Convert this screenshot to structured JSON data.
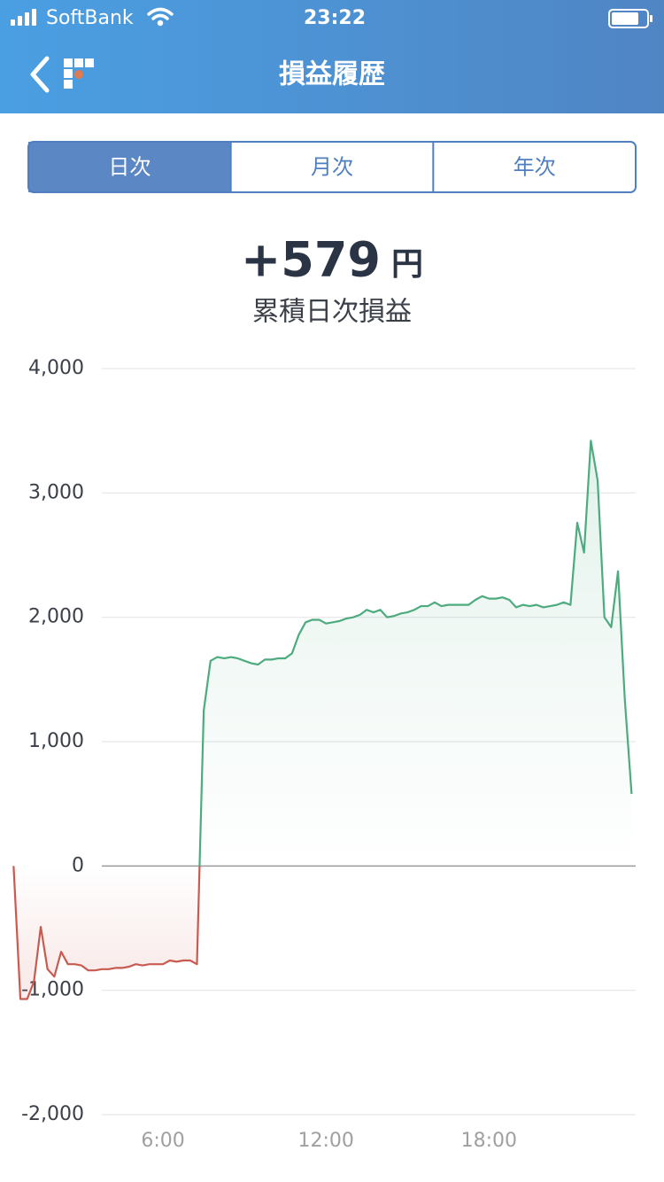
{
  "status_bar": {
    "carrier": "SoftBank",
    "time": "23:22"
  },
  "nav": {
    "title": "損益履歴"
  },
  "tabs": {
    "items": [
      "日次",
      "月次",
      "年次"
    ],
    "selected": 0
  },
  "summary": {
    "value": "+579",
    "unit": "円",
    "label": "累積日次損益"
  },
  "chart_data": {
    "type": "area-line",
    "x": [
      0.5,
      0.75,
      1,
      1.25,
      1.5,
      1.75,
      2,
      2.25,
      2.5,
      2.75,
      3,
      3.25,
      3.5,
      3.75,
      4,
      4.25,
      4.5,
      4.75,
      5,
      5.25,
      5.5,
      5.75,
      6,
      6.25,
      6.5,
      6.75,
      7,
      7.25,
      7.5,
      7.75,
      8,
      8.25,
      8.5,
      8.75,
      9,
      9.25,
      9.5,
      9.75,
      10,
      10.25,
      10.5,
      10.75,
      11,
      11.25,
      11.5,
      11.75,
      12,
      12.25,
      12.5,
      12.75,
      13,
      13.25,
      13.5,
      13.75,
      14,
      14.25,
      14.5,
      14.75,
      15,
      15.25,
      15.5,
      15.75,
      16,
      16.25,
      16.5,
      16.75,
      17,
      17.25,
      17.5,
      17.75,
      18,
      18.25,
      18.5,
      18.75,
      19,
      19.25,
      19.5,
      19.75,
      20,
      20.25,
      20.5,
      20.75,
      21,
      21.25,
      21.5,
      21.75,
      22,
      22.25,
      22.5,
      22.75,
      23,
      23.25
    ],
    "series": [
      {
        "color": "#4dab7f",
        "negative_color": "#c95a50",
        "values": [
          0,
          -1070,
          -1070,
          -930,
          -490,
          -830,
          -890,
          -690,
          -790,
          -790,
          -800,
          -840,
          -840,
          -830,
          -830,
          -820,
          -820,
          -810,
          -790,
          -800,
          -790,
          -790,
          -790,
          -760,
          -770,
          -760,
          -760,
          -790,
          1250,
          1650,
          1680,
          1670,
          1680,
          1670,
          1650,
          1630,
          1620,
          1660,
          1660,
          1670,
          1670,
          1710,
          1860,
          1960,
          1980,
          1980,
          1950,
          1960,
          1970,
          1990,
          2000,
          2020,
          2060,
          2040,
          2060,
          2000,
          2010,
          2030,
          2040,
          2060,
          2090,
          2090,
          2120,
          2090,
          2100,
          2100,
          2100,
          2100,
          2140,
          2170,
          2150,
          2150,
          2160,
          2140,
          2080,
          2100,
          2090,
          2100,
          2080,
          2090,
          2100,
          2120,
          2100,
          2760,
          2520,
          3420,
          3100,
          2000,
          1920,
          2370,
          1340,
          579
        ]
      }
    ],
    "xlim": [
      0,
      23.4
    ],
    "xticks": [
      {
        "value": 6,
        "label": "6:00"
      },
      {
        "value": 12,
        "label": "12:00"
      },
      {
        "value": 18,
        "label": "18:00"
      }
    ],
    "ylim": [
      -2000,
      4000
    ],
    "yticks": [
      {
        "value": -2000,
        "label": "-2,000"
      },
      {
        "value": -1000,
        "label": "-1,000"
      },
      0,
      {
        "value": 1000,
        "label": "1,000"
      },
      {
        "value": 2000,
        "label": "2,000"
      },
      {
        "value": 3000,
        "label": "3,000"
      },
      {
        "value": 4000,
        "label": "4,000"
      }
    ],
    "grid": true
  }
}
